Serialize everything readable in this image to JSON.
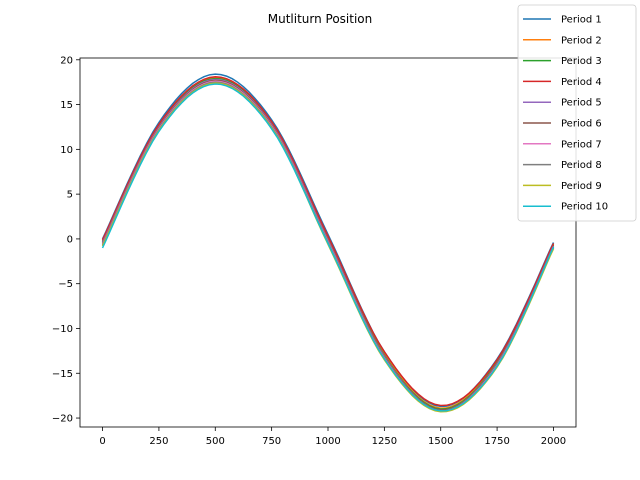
{
  "chart_data": {
    "type": "line",
    "title": "Mutliturn Position",
    "xlabel": "",
    "ylabel": "",
    "xlim": [
      -100,
      2100
    ],
    "ylim": [
      -21,
      20.2
    ],
    "xticks": [
      0,
      250,
      500,
      750,
      1000,
      1250,
      1500,
      1750,
      2000
    ],
    "yticks": [
      -20,
      -15,
      -10,
      -5,
      0,
      5,
      10,
      15,
      20
    ],
    "grid": false,
    "legend_position": "top-right",
    "series": [
      {
        "name": "Period 1",
        "color": "#1f77b4",
        "x": [
          0,
          250,
          500,
          750,
          1000,
          1250,
          1500,
          1750,
          2000
        ],
        "y": [
          0.0,
          13.0,
          18.4,
          13.3,
          0.5,
          -12.6,
          -18.7,
          -13.4,
          -0.4
        ]
      },
      {
        "name": "Period 2",
        "color": "#ff7f0e",
        "x": [
          0,
          250,
          500,
          750,
          1000,
          1250,
          1500,
          1750,
          2000
        ],
        "y": [
          -0.2,
          12.7,
          18.0,
          13.0,
          0.2,
          -12.8,
          -18.9,
          -13.6,
          -0.6
        ]
      },
      {
        "name": "Period 3",
        "color": "#2ca02c",
        "x": [
          0,
          250,
          500,
          750,
          1000,
          1250,
          1500,
          1750,
          2000
        ],
        "y": [
          -0.3,
          12.6,
          17.9,
          12.9,
          0.0,
          -13.0,
          -19.0,
          -13.8,
          -0.7
        ]
      },
      {
        "name": "Period 4",
        "color": "#d62728",
        "x": [
          0,
          250,
          500,
          750,
          1000,
          1250,
          1500,
          1750,
          2000
        ],
        "y": [
          -0.1,
          12.8,
          18.1,
          13.1,
          0.3,
          -12.6,
          -18.6,
          -13.5,
          -0.5
        ]
      },
      {
        "name": "Period 5",
        "color": "#9467bd",
        "x": [
          0,
          250,
          500,
          750,
          1000,
          1250,
          1500,
          1750,
          2000
        ],
        "y": [
          -0.4,
          12.5,
          17.8,
          12.8,
          -0.1,
          -13.1,
          -19.1,
          -13.9,
          -0.8
        ]
      },
      {
        "name": "Period 6",
        "color": "#8c564b",
        "x": [
          0,
          250,
          500,
          750,
          1000,
          1250,
          1500,
          1750,
          2000
        ],
        "y": [
          -0.5,
          12.4,
          17.7,
          12.7,
          -0.2,
          -13.2,
          -19.1,
          -14.0,
          -0.9
        ]
      },
      {
        "name": "Period 7",
        "color": "#e377c2",
        "x": [
          0,
          250,
          500,
          750,
          1000,
          1250,
          1500,
          1750,
          2000
        ],
        "y": [
          -0.6,
          12.3,
          17.6,
          12.6,
          -0.3,
          -13.3,
          -19.2,
          -14.1,
          -1.0
        ]
      },
      {
        "name": "Period 8",
        "color": "#7f7f7f",
        "x": [
          0,
          250,
          500,
          750,
          1000,
          1250,
          1500,
          1750,
          2000
        ],
        "y": [
          -0.7,
          12.2,
          17.5,
          12.5,
          -0.4,
          -13.4,
          -19.2,
          -14.2,
          -1.0
        ]
      },
      {
        "name": "Period 9",
        "color": "#bcbd22",
        "x": [
          0,
          250,
          500,
          750,
          1000,
          1250,
          1500,
          1750,
          2000
        ],
        "y": [
          -0.8,
          12.1,
          17.4,
          12.4,
          -0.6,
          -13.5,
          -19.3,
          -14.3,
          -1.1
        ]
      },
      {
        "name": "Period 10",
        "color": "#17becf",
        "x": [
          0,
          250,
          500,
          750,
          1000,
          1250,
          1500,
          1750,
          2000
        ],
        "y": [
          -1.0,
          12.0,
          17.3,
          12.3,
          -0.5,
          -13.4,
          -19.2,
          -14.2,
          -0.9
        ]
      }
    ]
  }
}
